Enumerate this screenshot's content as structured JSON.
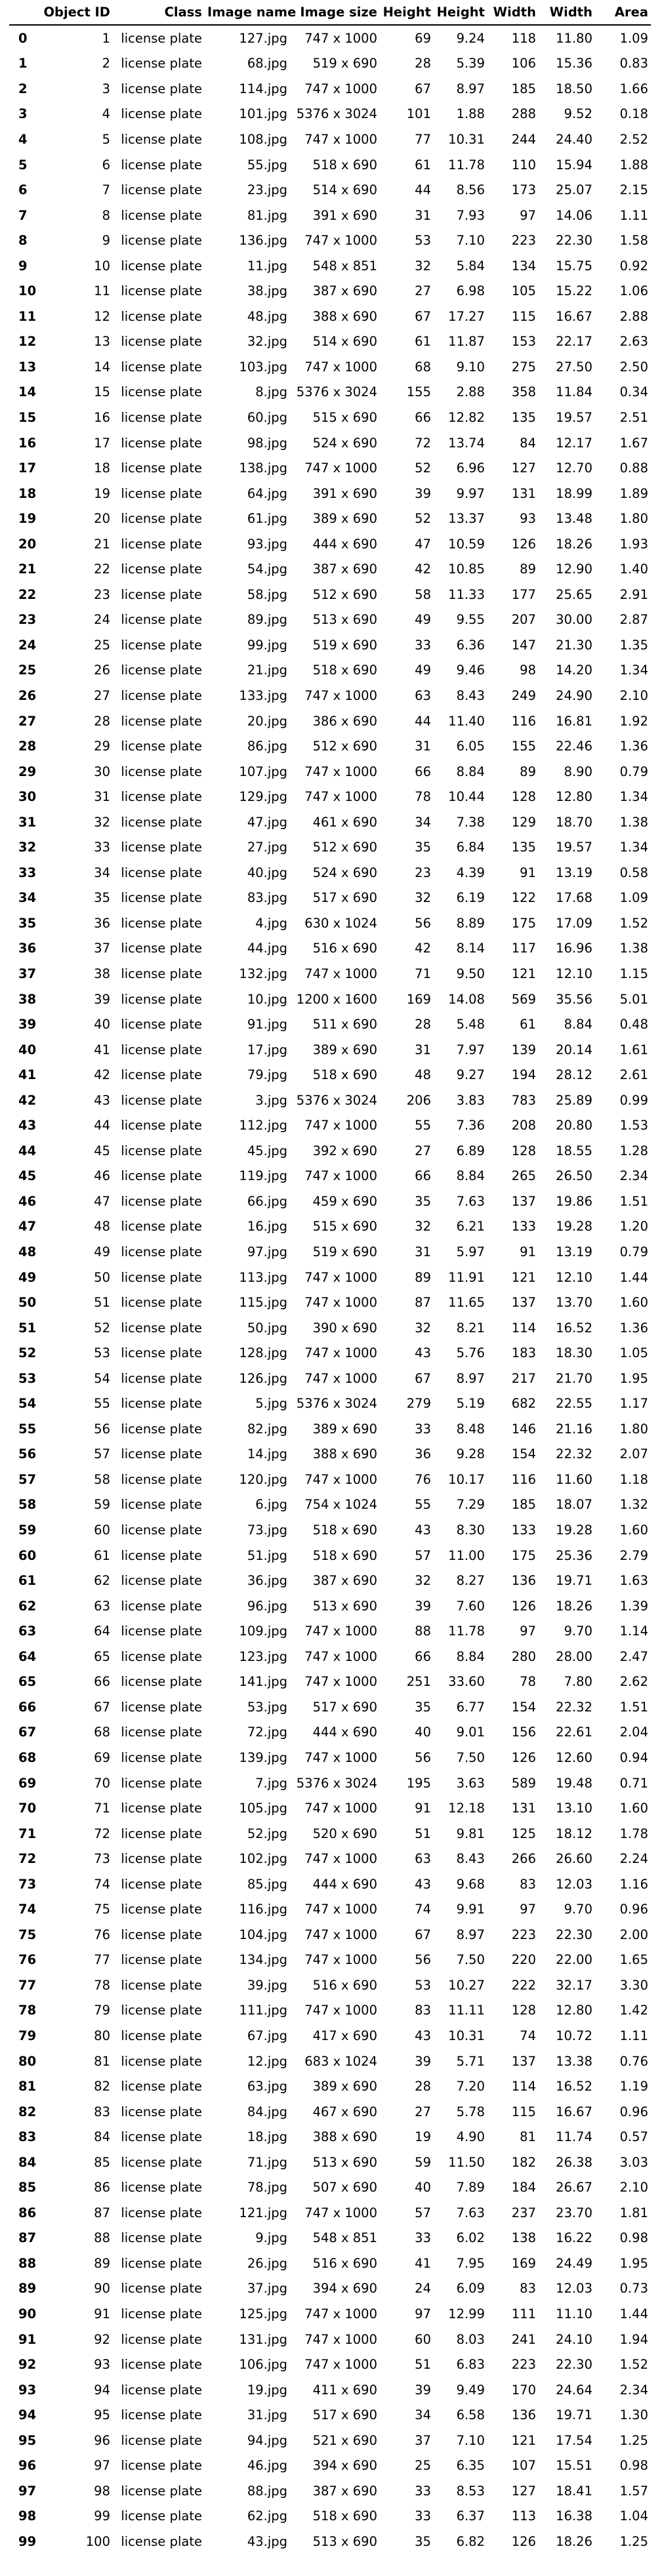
{
  "table": {
    "columns": [
      "",
      "Object ID",
      "Class",
      "Image name",
      "Image size",
      "Height",
      "Height",
      "Width",
      "Width",
      "Area"
    ],
    "rows": [
      [
        "0",
        "1",
        "license plate",
        "127.jpg",
        "747 x 1000",
        "69",
        "9.24",
        "118",
        "11.80",
        "1.09"
      ],
      [
        "1",
        "2",
        "license plate",
        "68.jpg",
        "519 x 690",
        "28",
        "5.39",
        "106",
        "15.36",
        "0.83"
      ],
      [
        "2",
        "3",
        "license plate",
        "114.jpg",
        "747 x 1000",
        "67",
        "8.97",
        "185",
        "18.50",
        "1.66"
      ],
      [
        "3",
        "4",
        "license plate",
        "101.jpg",
        "5376 x 3024",
        "101",
        "1.88",
        "288",
        "9.52",
        "0.18"
      ],
      [
        "4",
        "5",
        "license plate",
        "108.jpg",
        "747 x 1000",
        "77",
        "10.31",
        "244",
        "24.40",
        "2.52"
      ],
      [
        "5",
        "6",
        "license plate",
        "55.jpg",
        "518 x 690",
        "61",
        "11.78",
        "110",
        "15.94",
        "1.88"
      ],
      [
        "6",
        "7",
        "license plate",
        "23.jpg",
        "514 x 690",
        "44",
        "8.56",
        "173",
        "25.07",
        "2.15"
      ],
      [
        "7",
        "8",
        "license plate",
        "81.jpg",
        "391 x 690",
        "31",
        "7.93",
        "97",
        "14.06",
        "1.11"
      ],
      [
        "8",
        "9",
        "license plate",
        "136.jpg",
        "747 x 1000",
        "53",
        "7.10",
        "223",
        "22.30",
        "1.58"
      ],
      [
        "9",
        "10",
        "license plate",
        "11.jpg",
        "548 x 851",
        "32",
        "5.84",
        "134",
        "15.75",
        "0.92"
      ],
      [
        "10",
        "11",
        "license plate",
        "38.jpg",
        "387 x 690",
        "27",
        "6.98",
        "105",
        "15.22",
        "1.06"
      ],
      [
        "11",
        "12",
        "license plate",
        "48.jpg",
        "388 x 690",
        "67",
        "17.27",
        "115",
        "16.67",
        "2.88"
      ],
      [
        "12",
        "13",
        "license plate",
        "32.jpg",
        "514 x 690",
        "61",
        "11.87",
        "153",
        "22.17",
        "2.63"
      ],
      [
        "13",
        "14",
        "license plate",
        "103.jpg",
        "747 x 1000",
        "68",
        "9.10",
        "275",
        "27.50",
        "2.50"
      ],
      [
        "14",
        "15",
        "license plate",
        "8.jpg",
        "5376 x 3024",
        "155",
        "2.88",
        "358",
        "11.84",
        "0.34"
      ],
      [
        "15",
        "16",
        "license plate",
        "60.jpg",
        "515 x 690",
        "66",
        "12.82",
        "135",
        "19.57",
        "2.51"
      ],
      [
        "16",
        "17",
        "license plate",
        "98.jpg",
        "524 x 690",
        "72",
        "13.74",
        "84",
        "12.17",
        "1.67"
      ],
      [
        "17",
        "18",
        "license plate",
        "138.jpg",
        "747 x 1000",
        "52",
        "6.96",
        "127",
        "12.70",
        "0.88"
      ],
      [
        "18",
        "19",
        "license plate",
        "64.jpg",
        "391 x 690",
        "39",
        "9.97",
        "131",
        "18.99",
        "1.89"
      ],
      [
        "19",
        "20",
        "license plate",
        "61.jpg",
        "389 x 690",
        "52",
        "13.37",
        "93",
        "13.48",
        "1.80"
      ],
      [
        "20",
        "21",
        "license plate",
        "93.jpg",
        "444 x 690",
        "47",
        "10.59",
        "126",
        "18.26",
        "1.93"
      ],
      [
        "21",
        "22",
        "license plate",
        "54.jpg",
        "387 x 690",
        "42",
        "10.85",
        "89",
        "12.90",
        "1.40"
      ],
      [
        "22",
        "23",
        "license plate",
        "58.jpg",
        "512 x 690",
        "58",
        "11.33",
        "177",
        "25.65",
        "2.91"
      ],
      [
        "23",
        "24",
        "license plate",
        "89.jpg",
        "513 x 690",
        "49",
        "9.55",
        "207",
        "30.00",
        "2.87"
      ],
      [
        "24",
        "25",
        "license plate",
        "99.jpg",
        "519 x 690",
        "33",
        "6.36",
        "147",
        "21.30",
        "1.35"
      ],
      [
        "25",
        "26",
        "license plate",
        "21.jpg",
        "518 x 690",
        "49",
        "9.46",
        "98",
        "14.20",
        "1.34"
      ],
      [
        "26",
        "27",
        "license plate",
        "133.jpg",
        "747 x 1000",
        "63",
        "8.43",
        "249",
        "24.90",
        "2.10"
      ],
      [
        "27",
        "28",
        "license plate",
        "20.jpg",
        "386 x 690",
        "44",
        "11.40",
        "116",
        "16.81",
        "1.92"
      ],
      [
        "28",
        "29",
        "license plate",
        "86.jpg",
        "512 x 690",
        "31",
        "6.05",
        "155",
        "22.46",
        "1.36"
      ],
      [
        "29",
        "30",
        "license plate",
        "107.jpg",
        "747 x 1000",
        "66",
        "8.84",
        "89",
        "8.90",
        "0.79"
      ],
      [
        "30",
        "31",
        "license plate",
        "129.jpg",
        "747 x 1000",
        "78",
        "10.44",
        "128",
        "12.80",
        "1.34"
      ],
      [
        "31",
        "32",
        "license plate",
        "47.jpg",
        "461 x 690",
        "34",
        "7.38",
        "129",
        "18.70",
        "1.38"
      ],
      [
        "32",
        "33",
        "license plate",
        "27.jpg",
        "512 x 690",
        "35",
        "6.84",
        "135",
        "19.57",
        "1.34"
      ],
      [
        "33",
        "34",
        "license plate",
        "40.jpg",
        "524 x 690",
        "23",
        "4.39",
        "91",
        "13.19",
        "0.58"
      ],
      [
        "34",
        "35",
        "license plate",
        "83.jpg",
        "517 x 690",
        "32",
        "6.19",
        "122",
        "17.68",
        "1.09"
      ],
      [
        "35",
        "36",
        "license plate",
        "4.jpg",
        "630 x 1024",
        "56",
        "8.89",
        "175",
        "17.09",
        "1.52"
      ],
      [
        "36",
        "37",
        "license plate",
        "44.jpg",
        "516 x 690",
        "42",
        "8.14",
        "117",
        "16.96",
        "1.38"
      ],
      [
        "37",
        "38",
        "license plate",
        "132.jpg",
        "747 x 1000",
        "71",
        "9.50",
        "121",
        "12.10",
        "1.15"
      ],
      [
        "38",
        "39",
        "license plate",
        "10.jpg",
        "1200 x 1600",
        "169",
        "14.08",
        "569",
        "35.56",
        "5.01"
      ],
      [
        "39",
        "40",
        "license plate",
        "91.jpg",
        "511 x 690",
        "28",
        "5.48",
        "61",
        "8.84",
        "0.48"
      ],
      [
        "40",
        "41",
        "license plate",
        "17.jpg",
        "389 x 690",
        "31",
        "7.97",
        "139",
        "20.14",
        "1.61"
      ],
      [
        "41",
        "42",
        "license plate",
        "79.jpg",
        "518 x 690",
        "48",
        "9.27",
        "194",
        "28.12",
        "2.61"
      ],
      [
        "42",
        "43",
        "license plate",
        "3.jpg",
        "5376 x 3024",
        "206",
        "3.83",
        "783",
        "25.89",
        "0.99"
      ],
      [
        "43",
        "44",
        "license plate",
        "112.jpg",
        "747 x 1000",
        "55",
        "7.36",
        "208",
        "20.80",
        "1.53"
      ],
      [
        "44",
        "45",
        "license plate",
        "45.jpg",
        "392 x 690",
        "27",
        "6.89",
        "128",
        "18.55",
        "1.28"
      ],
      [
        "45",
        "46",
        "license plate",
        "119.jpg",
        "747 x 1000",
        "66",
        "8.84",
        "265",
        "26.50",
        "2.34"
      ],
      [
        "46",
        "47",
        "license plate",
        "66.jpg",
        "459 x 690",
        "35",
        "7.63",
        "137",
        "19.86",
        "1.51"
      ],
      [
        "47",
        "48",
        "license plate",
        "16.jpg",
        "515 x 690",
        "32",
        "6.21",
        "133",
        "19.28",
        "1.20"
      ],
      [
        "48",
        "49",
        "license plate",
        "97.jpg",
        "519 x 690",
        "31",
        "5.97",
        "91",
        "13.19",
        "0.79"
      ],
      [
        "49",
        "50",
        "license plate",
        "113.jpg",
        "747 x 1000",
        "89",
        "11.91",
        "121",
        "12.10",
        "1.44"
      ],
      [
        "50",
        "51",
        "license plate",
        "115.jpg",
        "747 x 1000",
        "87",
        "11.65",
        "137",
        "13.70",
        "1.60"
      ],
      [
        "51",
        "52",
        "license plate",
        "50.jpg",
        "390 x 690",
        "32",
        "8.21",
        "114",
        "16.52",
        "1.36"
      ],
      [
        "52",
        "53",
        "license plate",
        "128.jpg",
        "747 x 1000",
        "43",
        "5.76",
        "183",
        "18.30",
        "1.05"
      ],
      [
        "53",
        "54",
        "license plate",
        "126.jpg",
        "747 x 1000",
        "67",
        "8.97",
        "217",
        "21.70",
        "1.95"
      ],
      [
        "54",
        "55",
        "license plate",
        "5.jpg",
        "5376 x 3024",
        "279",
        "5.19",
        "682",
        "22.55",
        "1.17"
      ],
      [
        "55",
        "56",
        "license plate",
        "82.jpg",
        "389 x 690",
        "33",
        "8.48",
        "146",
        "21.16",
        "1.80"
      ],
      [
        "56",
        "57",
        "license plate",
        "14.jpg",
        "388 x 690",
        "36",
        "9.28",
        "154",
        "22.32",
        "2.07"
      ],
      [
        "57",
        "58",
        "license plate",
        "120.jpg",
        "747 x 1000",
        "76",
        "10.17",
        "116",
        "11.60",
        "1.18"
      ],
      [
        "58",
        "59",
        "license plate",
        "6.jpg",
        "754 x 1024",
        "55",
        "7.29",
        "185",
        "18.07",
        "1.32"
      ],
      [
        "59",
        "60",
        "license plate",
        "73.jpg",
        "518 x 690",
        "43",
        "8.30",
        "133",
        "19.28",
        "1.60"
      ],
      [
        "60",
        "61",
        "license plate",
        "51.jpg",
        "518 x 690",
        "57",
        "11.00",
        "175",
        "25.36",
        "2.79"
      ],
      [
        "61",
        "62",
        "license plate",
        "36.jpg",
        "387 x 690",
        "32",
        "8.27",
        "136",
        "19.71",
        "1.63"
      ],
      [
        "62",
        "63",
        "license plate",
        "96.jpg",
        "513 x 690",
        "39",
        "7.60",
        "126",
        "18.26",
        "1.39"
      ],
      [
        "63",
        "64",
        "license plate",
        "109.jpg",
        "747 x 1000",
        "88",
        "11.78",
        "97",
        "9.70",
        "1.14"
      ],
      [
        "64",
        "65",
        "license plate",
        "123.jpg",
        "747 x 1000",
        "66",
        "8.84",
        "280",
        "28.00",
        "2.47"
      ],
      [
        "65",
        "66",
        "license plate",
        "141.jpg",
        "747 x 1000",
        "251",
        "33.60",
        "78",
        "7.80",
        "2.62"
      ],
      [
        "66",
        "67",
        "license plate",
        "53.jpg",
        "517 x 690",
        "35",
        "6.77",
        "154",
        "22.32",
        "1.51"
      ],
      [
        "67",
        "68",
        "license plate",
        "72.jpg",
        "444 x 690",
        "40",
        "9.01",
        "156",
        "22.61",
        "2.04"
      ],
      [
        "68",
        "69",
        "license plate",
        "139.jpg",
        "747 x 1000",
        "56",
        "7.50",
        "126",
        "12.60",
        "0.94"
      ],
      [
        "69",
        "70",
        "license plate",
        "7.jpg",
        "5376 x 3024",
        "195",
        "3.63",
        "589",
        "19.48",
        "0.71"
      ],
      [
        "70",
        "71",
        "license plate",
        "105.jpg",
        "747 x 1000",
        "91",
        "12.18",
        "131",
        "13.10",
        "1.60"
      ],
      [
        "71",
        "72",
        "license plate",
        "52.jpg",
        "520 x 690",
        "51",
        "9.81",
        "125",
        "18.12",
        "1.78"
      ],
      [
        "72",
        "73",
        "license plate",
        "102.jpg",
        "747 x 1000",
        "63",
        "8.43",
        "266",
        "26.60",
        "2.24"
      ],
      [
        "73",
        "74",
        "license plate",
        "85.jpg",
        "444 x 690",
        "43",
        "9.68",
        "83",
        "12.03",
        "1.16"
      ],
      [
        "74",
        "75",
        "license plate",
        "116.jpg",
        "747 x 1000",
        "74",
        "9.91",
        "97",
        "9.70",
        "0.96"
      ],
      [
        "75",
        "76",
        "license plate",
        "104.jpg",
        "747 x 1000",
        "67",
        "8.97",
        "223",
        "22.30",
        "2.00"
      ],
      [
        "76",
        "77",
        "license plate",
        "134.jpg",
        "747 x 1000",
        "56",
        "7.50",
        "220",
        "22.00",
        "1.65"
      ],
      [
        "77",
        "78",
        "license plate",
        "39.jpg",
        "516 x 690",
        "53",
        "10.27",
        "222",
        "32.17",
        "3.30"
      ],
      [
        "78",
        "79",
        "license plate",
        "111.jpg",
        "747 x 1000",
        "83",
        "11.11",
        "128",
        "12.80",
        "1.42"
      ],
      [
        "79",
        "80",
        "license plate",
        "67.jpg",
        "417 x 690",
        "43",
        "10.31",
        "74",
        "10.72",
        "1.11"
      ],
      [
        "80",
        "81",
        "license plate",
        "12.jpg",
        "683 x 1024",
        "39",
        "5.71",
        "137",
        "13.38",
        "0.76"
      ],
      [
        "81",
        "82",
        "license plate",
        "63.jpg",
        "389 x 690",
        "28",
        "7.20",
        "114",
        "16.52",
        "1.19"
      ],
      [
        "82",
        "83",
        "license plate",
        "84.jpg",
        "467 x 690",
        "27",
        "5.78",
        "115",
        "16.67",
        "0.96"
      ],
      [
        "83",
        "84",
        "license plate",
        "18.jpg",
        "388 x 690",
        "19",
        "4.90",
        "81",
        "11.74",
        "0.57"
      ],
      [
        "84",
        "85",
        "license plate",
        "71.jpg",
        "513 x 690",
        "59",
        "11.50",
        "182",
        "26.38",
        "3.03"
      ],
      [
        "85",
        "86",
        "license plate",
        "78.jpg",
        "507 x 690",
        "40",
        "7.89",
        "184",
        "26.67",
        "2.10"
      ],
      [
        "86",
        "87",
        "license plate",
        "121.jpg",
        "747 x 1000",
        "57",
        "7.63",
        "237",
        "23.70",
        "1.81"
      ],
      [
        "87",
        "88",
        "license plate",
        "9.jpg",
        "548 x 851",
        "33",
        "6.02",
        "138",
        "16.22",
        "0.98"
      ],
      [
        "88",
        "89",
        "license plate",
        "26.jpg",
        "516 x 690",
        "41",
        "7.95",
        "169",
        "24.49",
        "1.95"
      ],
      [
        "89",
        "90",
        "license plate",
        "37.jpg",
        "394 x 690",
        "24",
        "6.09",
        "83",
        "12.03",
        "0.73"
      ],
      [
        "90",
        "91",
        "license plate",
        "125.jpg",
        "747 x 1000",
        "97",
        "12.99",
        "111",
        "11.10",
        "1.44"
      ],
      [
        "91",
        "92",
        "license plate",
        "131.jpg",
        "747 x 1000",
        "60",
        "8.03",
        "241",
        "24.10",
        "1.94"
      ],
      [
        "92",
        "93",
        "license plate",
        "106.jpg",
        "747 x 1000",
        "51",
        "6.83",
        "223",
        "22.30",
        "1.52"
      ],
      [
        "93",
        "94",
        "license plate",
        "19.jpg",
        "411 x 690",
        "39",
        "9.49",
        "170",
        "24.64",
        "2.34"
      ],
      [
        "94",
        "95",
        "license plate",
        "31.jpg",
        "517 x 690",
        "34",
        "6.58",
        "136",
        "19.71",
        "1.30"
      ],
      [
        "95",
        "96",
        "license plate",
        "94.jpg",
        "521 x 690",
        "37",
        "7.10",
        "121",
        "17.54",
        "1.25"
      ],
      [
        "96",
        "97",
        "license plate",
        "46.jpg",
        "394 x 690",
        "25",
        "6.35",
        "107",
        "15.51",
        "0.98"
      ],
      [
        "97",
        "98",
        "license plate",
        "88.jpg",
        "387 x 690",
        "33",
        "8.53",
        "127",
        "18.41",
        "1.57"
      ],
      [
        "98",
        "99",
        "license plate",
        "62.jpg",
        "518 x 690",
        "33",
        "6.37",
        "113",
        "16.38",
        "1.04"
      ],
      [
        "99",
        "100",
        "license plate",
        "43.jpg",
        "513 x 690",
        "35",
        "6.82",
        "126",
        "18.26",
        "1.25"
      ]
    ]
  }
}
